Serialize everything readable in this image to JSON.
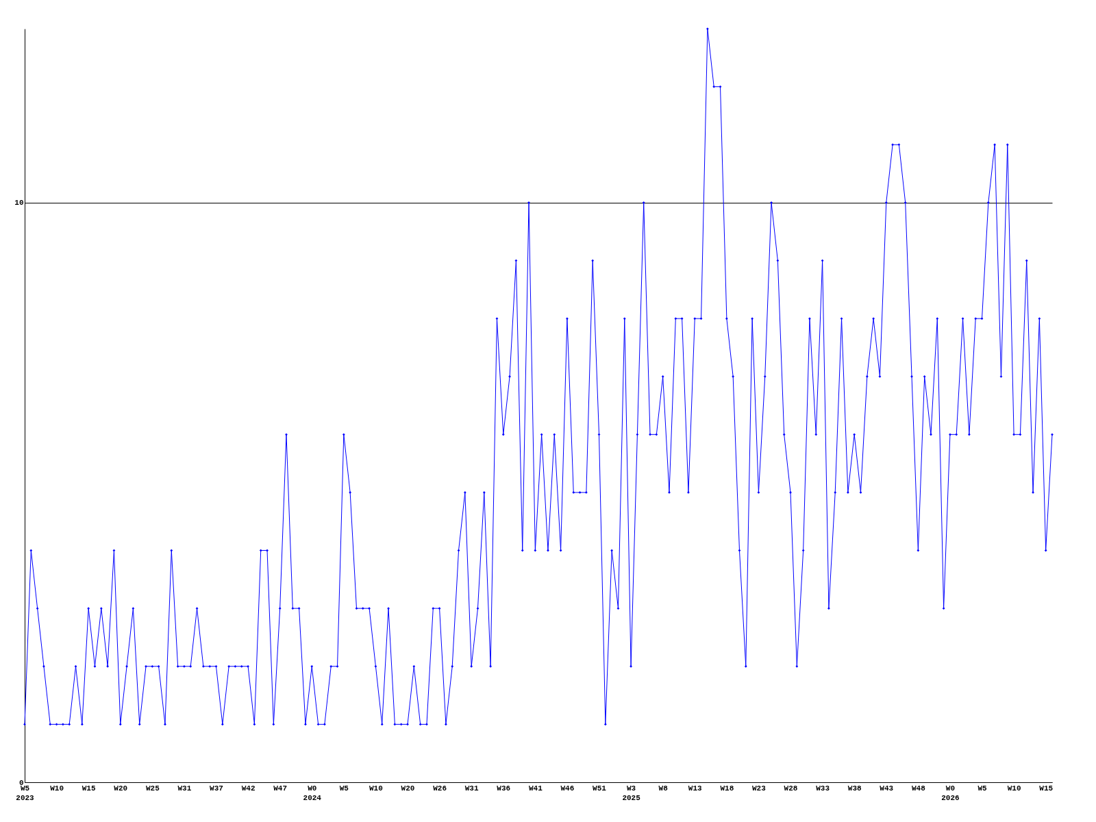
{
  "chart_data": {
    "type": "line",
    "categories": [
      "W5\n2023",
      null,
      null,
      null,
      null,
      "W10",
      null,
      null,
      null,
      null,
      "W15",
      null,
      null,
      null,
      null,
      "W20",
      null,
      null,
      null,
      null,
      "W25",
      null,
      null,
      null,
      null,
      "W31",
      null,
      null,
      null,
      null,
      "W37",
      null,
      null,
      null,
      null,
      "W42",
      null,
      null,
      null,
      null,
      "W47",
      null,
      null,
      null,
      null,
      "W0\n2024",
      null,
      null,
      null,
      null,
      "W5",
      null,
      null,
      null,
      null,
      "W10",
      null,
      null,
      null,
      null,
      "W20",
      null,
      null,
      null,
      null,
      "W26",
      null,
      null,
      null,
      null,
      "W31",
      null,
      null,
      null,
      null,
      "W36",
      null,
      null,
      null,
      null,
      "W41",
      null,
      null,
      null,
      null,
      "W46",
      null,
      null,
      null,
      null,
      "W51",
      null,
      null,
      null,
      null,
      "W3\n2025",
      null,
      null,
      null,
      null,
      "W8",
      null,
      null,
      null,
      null,
      "W13",
      null,
      null,
      null,
      null,
      "W18",
      null,
      null,
      null,
      null,
      "W23",
      null,
      null,
      null,
      null,
      "W28",
      null,
      null,
      null,
      null,
      "W33",
      null,
      null,
      null,
      null,
      "W38",
      null,
      null,
      null,
      null,
      "W43",
      null,
      null,
      null,
      null,
      "W48",
      null,
      null,
      null,
      null,
      "W0\n2026",
      null,
      null,
      null,
      null,
      "W5",
      null,
      null,
      null,
      null,
      "W10",
      null,
      null,
      null,
      null,
      "W15",
      null
    ],
    "series": [
      {
        "color": "#0000ff",
        "values": [
          1,
          4,
          3,
          2,
          1,
          1,
          1,
          1,
          2,
          1,
          3,
          2,
          3,
          2,
          4,
          1,
          2,
          3,
          1,
          2,
          2,
          2,
          1,
          4,
          2,
          2,
          2,
          3,
          2,
          2,
          2,
          1,
          2,
          2,
          2,
          2,
          1,
          4,
          4,
          1,
          3,
          6,
          3,
          3,
          1,
          2,
          1,
          1,
          2,
          2,
          6,
          5,
          3,
          3,
          3,
          2,
          1,
          3,
          1,
          1,
          1,
          2,
          1,
          1,
          3,
          3,
          1,
          2,
          4,
          5,
          2,
          3,
          5,
          2,
          8,
          6,
          7,
          9,
          4,
          10,
          4,
          6,
          4,
          6,
          4,
          8,
          5,
          5,
          5,
          9,
          6,
          1,
          4,
          3,
          8,
          2,
          6,
          10,
          6,
          6,
          7,
          5,
          8,
          8,
          5,
          8,
          8,
          13,
          12,
          12,
          8,
          7,
          4,
          2,
          8,
          5,
          7,
          10,
          9,
          6,
          5,
          2,
          4,
          8,
          6,
          9,
          3,
          5,
          8,
          5,
          6,
          5,
          7,
          8,
          7,
          10,
          11,
          11,
          10,
          7,
          4,
          7,
          6,
          8,
          3,
          6,
          6,
          8,
          6,
          8,
          8,
          10,
          11,
          7,
          11,
          6,
          6,
          9,
          5,
          8,
          4,
          6
        ]
      }
    ],
    "ylim": [
      0,
      13
    ],
    "yticks": [
      0,
      10
    ],
    "grid": "y",
    "marker": "diamond",
    "line_style": "solid"
  }
}
